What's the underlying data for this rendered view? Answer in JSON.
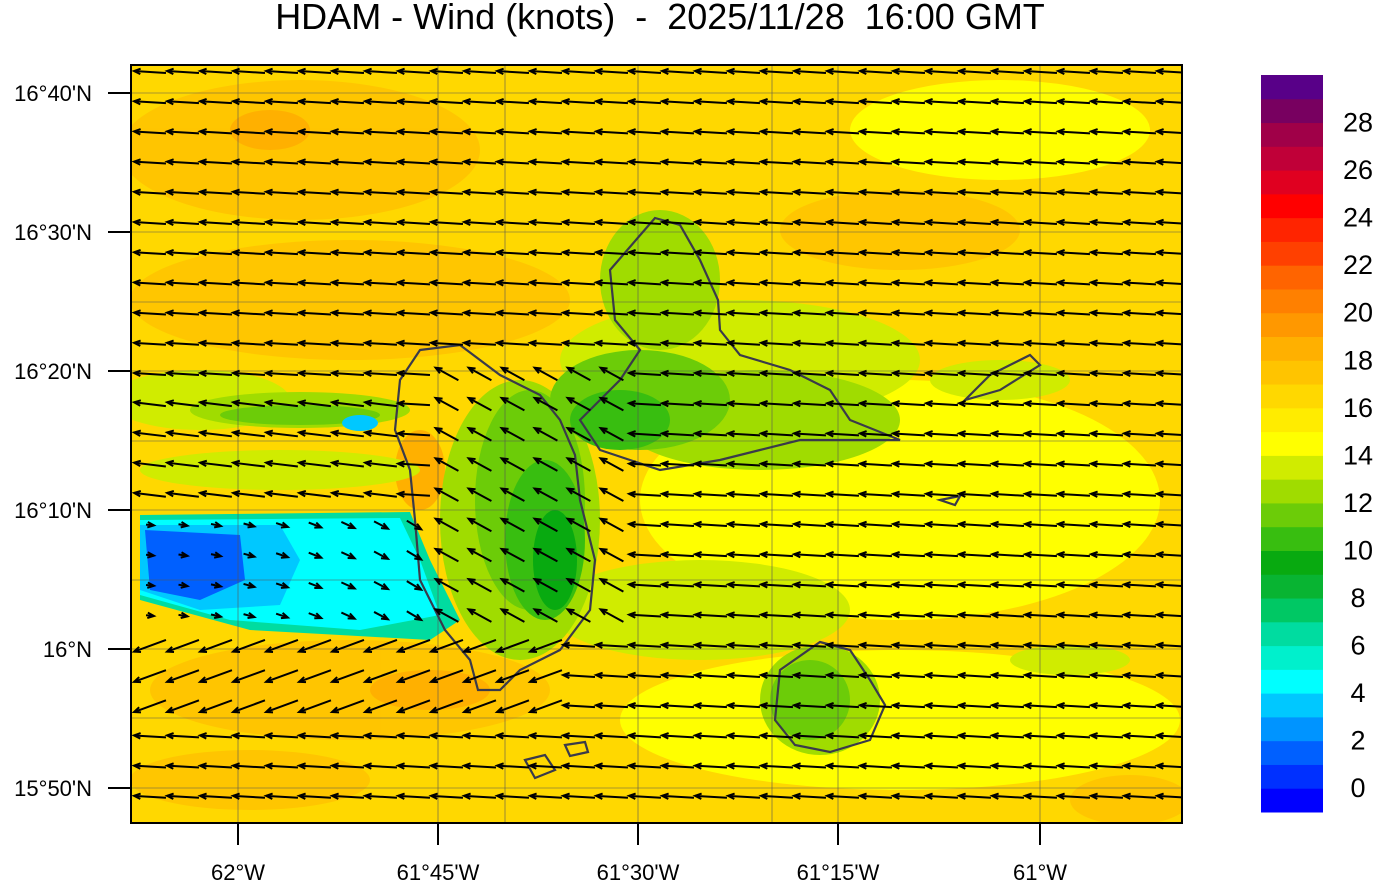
{
  "title": "HDAM - Wind (knots)  -  2025/11/28  16:00 GMT",
  "lat_labels": [
    "16°40'N",
    "16°30'N",
    "16°20'N",
    "16°10'N",
    "16°N",
    "15°50'N"
  ],
  "lon_labels": [
    "62°W",
    "61°45'W",
    "61°30'W",
    "61°15'W",
    "61°W"
  ],
  "colorbar": {
    "labels": [
      "0",
      "2",
      "4",
      "6",
      "8",
      "10",
      "12",
      "14",
      "16",
      "18",
      "20",
      "22",
      "24",
      "26",
      "28"
    ],
    "colors_bottom_to_top": [
      "#0000ff",
      "#0030ff",
      "#0060ff",
      "#0094ff",
      "#00c8ff",
      "#00ffff",
      "#00f0cc",
      "#00dca0",
      "#00c864",
      "#08b432",
      "#08aa10",
      "#38be10",
      "#6ccc08",
      "#a0dc00",
      "#d0ec00",
      "#ffff00",
      "#ffec00",
      "#ffd800",
      "#ffc400",
      "#ffb000",
      "#ff9800",
      "#ff8000",
      "#ff6400",
      "#ff4000",
      "#ff2400",
      "#ff0000",
      "#e00020",
      "#c00038",
      "#a00048",
      "#780060",
      "#580088"
    ]
  },
  "field": {
    "background": "#ffd800",
    "prevailing_wind": "east",
    "typical_speed_knots": 17
  }
}
